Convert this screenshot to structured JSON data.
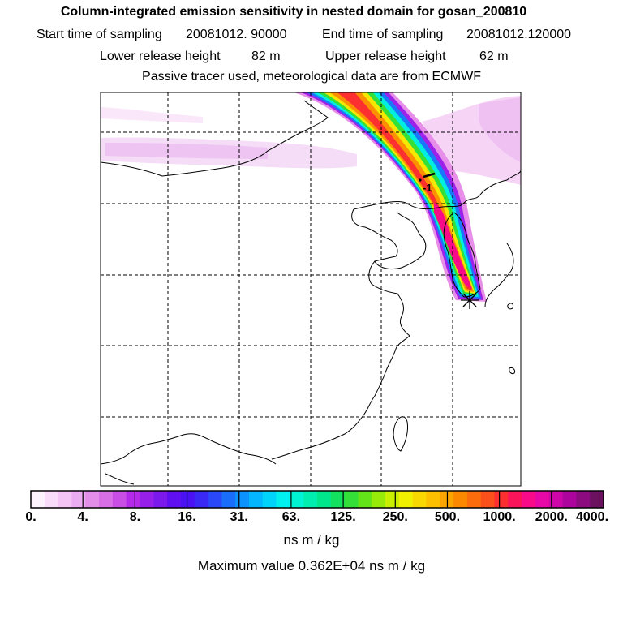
{
  "header": {
    "title": "Column-integrated emission sensitivity in nested domain for gosan_200810",
    "start_label": "Start time of sampling",
    "start_value": "20081012. 90000",
    "end_label": "End time of sampling",
    "end_value": "20081012.120000",
    "lower_label": "Lower release height",
    "lower_value": "82 m",
    "upper_label": "Upper release height",
    "upper_value": "62 m",
    "note": "Passive tracer used, meteorological data are from ECMWF"
  },
  "map": {
    "plume_label": "-1",
    "receptor_icon": "star-icon"
  },
  "colorbar": {
    "ticks": [
      "0.",
      "4.",
      "8.",
      "16.",
      "31.",
      "63.",
      "125.",
      "250.",
      "500.",
      "1000.",
      "2000.",
      "4000."
    ],
    "colors": [
      "#fdf3fd",
      "#f9dcf9",
      "#f3c4f5",
      "#ecacf2",
      "#e38ee8",
      "#d86fe6",
      "#c94ee6",
      "#b32ae8",
      "#9620ea",
      "#7b18ec",
      "#6010f0",
      "#4a12f2",
      "#3a28f5",
      "#2a48f8",
      "#1a6cfb",
      "#0c92fc",
      "#04b6fd",
      "#00d4fb",
      "#00f0f0",
      "#00f4d4",
      "#00eeb0",
      "#00e68a",
      "#14e060",
      "#34e038",
      "#64e418",
      "#98ea08",
      "#c8f000",
      "#f0f000",
      "#f8d800",
      "#fcc000",
      "#fca400",
      "#fc8800",
      "#fc6c0c",
      "#fc501c",
      "#fc3030",
      "#fc145a",
      "#f80a88",
      "#e808a8",
      "#cc06a8",
      "#ac049c",
      "#8c0c80",
      "#6c1060"
    ]
  },
  "units": "ns m / kg",
  "maximum": {
    "label": "Maximum value",
    "value": "0.362E+04",
    "units": "ns m / kg"
  }
}
